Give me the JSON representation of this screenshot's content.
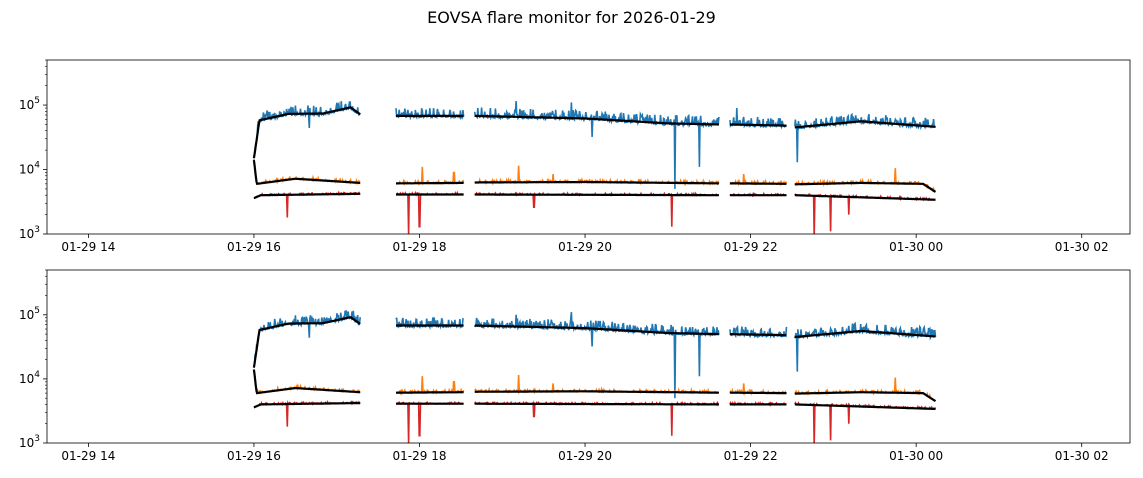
{
  "figure": {
    "title": "EOVSA flare monitor for 2026-01-29"
  },
  "chart_data": [
    {
      "type": "line",
      "yscale": "log",
      "ylim": [
        1000,
        500000
      ],
      "xlim": [
        "01-29 13:30",
        "01-30 02:35"
      ],
      "x_ticks": [
        "01-29 14",
        "01-29 16",
        "01-29 18",
        "01-29 20",
        "01-29 22",
        "01-30 00",
        "01-30 02"
      ],
      "y_ticks": [
        {
          "value": 1000,
          "base": "10",
          "exp": "3"
        },
        {
          "value": 10000,
          "base": "10",
          "exp": "4"
        },
        {
          "value": 100000,
          "base": "10",
          "exp": "5"
        }
      ],
      "segments": [
        [
          "01-29 16:00",
          "01-29 17:17"
        ],
        [
          "01-29 17:43",
          "01-29 18:32"
        ],
        [
          "01-29 18:40",
          "01-29 21:37"
        ],
        [
          "01-29 21:45",
          "01-29 22:26"
        ],
        [
          "01-29 22:32",
          "01-30 00:14"
        ]
      ],
      "series": [
        {
          "color": "#1f77b4",
          "baseline": [
            [
              "01-29 16:00",
              15000
            ],
            [
              "01-29 16:04",
              58000
            ],
            [
              "01-29 16:25",
              73000
            ],
            [
              "01-29 16:50",
              74000
            ],
            [
              "01-29 17:10",
              92000
            ],
            [
              "01-29 17:17",
              72000
            ],
            [
              "01-29 17:43",
              68000
            ],
            [
              "01-29 18:32",
              68000
            ],
            [
              "01-29 18:40",
              68000
            ],
            [
              "01-29 20:00",
              62000
            ],
            [
              "01-29 21:00",
              52000
            ],
            [
              "01-29 21:37",
              50000
            ],
            [
              "01-29 21:45",
              50000
            ],
            [
              "01-29 22:26",
              48000
            ],
            [
              "01-29 22:32",
              45000
            ],
            [
              "01-29 23:20",
              56000
            ],
            [
              "01-30 00:14",
              46000
            ]
          ],
          "noise": 0.25,
          "spikes_up": [
            [
              "01-29 19:10",
              115000
            ],
            [
              "01-29 19:50",
              110000
            ],
            [
              "01-29 21:50",
              90000
            ]
          ],
          "spikes_down": [
            [
              "01-29 16:40",
              44000
            ],
            [
              "01-29 20:05",
              32000
            ],
            [
              "01-29 21:05",
              5000
            ],
            [
              "01-29 21:23",
              11000
            ],
            [
              "01-29 22:34",
              13000
            ]
          ]
        },
        {
          "color": "#ff7f0e",
          "baseline": [
            [
              "01-29 16:00",
              14000
            ],
            [
              "01-29 16:02",
              6000
            ],
            [
              "01-29 16:30",
              7200
            ],
            [
              "01-29 17:17",
              6200
            ],
            [
              "01-29 17:43",
              6100
            ],
            [
              "01-29 18:32",
              6200
            ],
            [
              "01-29 18:40",
              6300
            ],
            [
              "01-29 20:00",
              6400
            ],
            [
              "01-29 21:37",
              6100
            ],
            [
              "01-29 21:45",
              6100
            ],
            [
              "01-29 22:26",
              6000
            ],
            [
              "01-29 22:32",
              5900
            ],
            [
              "01-29 23:20",
              6200
            ],
            [
              "01-30 00:05",
              6000
            ],
            [
              "01-30 00:14",
              4500
            ]
          ],
          "noise": 0.06,
          "spikes_up": [
            [
              "01-29 18:02",
              11000
            ],
            [
              "01-29 18:25",
              9000
            ],
            [
              "01-29 19:12",
              11500
            ],
            [
              "01-29 19:37",
              8500
            ],
            [
              "01-29 21:55",
              8500
            ],
            [
              "01-29 23:45",
              10500
            ]
          ],
          "spikes_down": []
        },
        {
          "color": "#d62728",
          "baseline": [
            [
              "01-29 16:00",
              3600
            ],
            [
              "01-29 16:05",
              4000
            ],
            [
              "01-29 17:17",
              4200
            ],
            [
              "01-29 17:43",
              4100
            ],
            [
              "01-29 18:32",
              4100
            ],
            [
              "01-29 18:40",
              4100
            ],
            [
              "01-29 21:37",
              4000
            ],
            [
              "01-29 21:45",
              4000
            ],
            [
              "01-29 22:26",
              4000
            ],
            [
              "01-29 22:32",
              4000
            ],
            [
              "01-30 00:14",
              3400
            ]
          ],
          "noise": 0.04,
          "spikes_up": [],
          "spikes_down": [
            [
              "01-29 16:24",
              1800
            ],
            [
              "01-29 17:52",
              1000
            ],
            [
              "01-29 18:00",
              1300
            ],
            [
              "01-29 19:23",
              2600
            ],
            [
              "01-29 21:03",
              1300
            ],
            [
              "01-29 22:46",
              900
            ],
            [
              "01-29 22:58",
              1100
            ],
            [
              "01-29 23:11",
              2000
            ]
          ]
        }
      ],
      "smooth_color": "#000000",
      "grid": false
    },
    {
      "type": "line",
      "yscale": "log",
      "ylim": [
        1000,
        500000
      ],
      "xlim": [
        "01-29 13:30",
        "01-30 02:35"
      ],
      "x_ticks": [
        "01-29 14",
        "01-29 16",
        "01-29 18",
        "01-29 20",
        "01-29 22",
        "01-30 00",
        "01-30 02"
      ],
      "y_ticks": [
        {
          "value": 1000,
          "base": "10",
          "exp": "3"
        },
        {
          "value": 10000,
          "base": "10",
          "exp": "4"
        },
        {
          "value": 100000,
          "base": "10",
          "exp": "5"
        }
      ],
      "segments": [
        [
          "01-29 16:00",
          "01-29 17:17"
        ],
        [
          "01-29 17:43",
          "01-29 18:32"
        ],
        [
          "01-29 18:40",
          "01-29 21:37"
        ],
        [
          "01-29 21:45",
          "01-29 22:26"
        ],
        [
          "01-29 22:32",
          "01-30 00:14"
        ]
      ],
      "series": [
        {
          "color": "#1f77b4",
          "baseline": [
            [
              "01-29 16:00",
              15000
            ],
            [
              "01-29 16:04",
              58000
            ],
            [
              "01-29 16:25",
              73000
            ],
            [
              "01-29 16:50",
              74000
            ],
            [
              "01-29 17:10",
              92000
            ],
            [
              "01-29 17:17",
              72000
            ],
            [
              "01-29 17:43",
              68000
            ],
            [
              "01-29 18:32",
              68000
            ],
            [
              "01-29 18:40",
              68000
            ],
            [
              "01-29 20:00",
              62000
            ],
            [
              "01-29 21:00",
              52000
            ],
            [
              "01-29 21:37",
              50000
            ],
            [
              "01-29 21:45",
              50000
            ],
            [
              "01-29 22:26",
              48000
            ],
            [
              "01-29 22:32",
              45000
            ],
            [
              "01-29 23:20",
              56000
            ],
            [
              "01-30 00:14",
              46000
            ]
          ],
          "noise": 0.25,
          "spikes_up": [
            [
              "01-29 19:10",
              100000
            ],
            [
              "01-29 19:50",
              110000
            ],
            [
              "01-29 21:50",
              62000
            ]
          ],
          "spikes_down": [
            [
              "01-29 16:40",
              44000
            ],
            [
              "01-29 20:05",
              32000
            ],
            [
              "01-29 21:05",
              5000
            ],
            [
              "01-29 21:23",
              11000
            ],
            [
              "01-29 22:34",
              13000
            ]
          ]
        },
        {
          "color": "#ff7f0e",
          "baseline": [
            [
              "01-29 16:00",
              14000
            ],
            [
              "01-29 16:02",
              6000
            ],
            [
              "01-29 16:30",
              7200
            ],
            [
              "01-29 17:17",
              6200
            ],
            [
              "01-29 17:43",
              6100
            ],
            [
              "01-29 18:32",
              6200
            ],
            [
              "01-29 18:40",
              6300
            ],
            [
              "01-29 20:00",
              6400
            ],
            [
              "01-29 21:37",
              6100
            ],
            [
              "01-29 21:45",
              6100
            ],
            [
              "01-29 22:26",
              6000
            ],
            [
              "01-29 22:32",
              5900
            ],
            [
              "01-29 23:20",
              6200
            ],
            [
              "01-30 00:05",
              6000
            ],
            [
              "01-30 00:14",
              4500
            ]
          ],
          "noise": 0.06,
          "spikes_up": [
            [
              "01-29 18:02",
              11000
            ],
            [
              "01-29 18:25",
              9000
            ],
            [
              "01-29 19:12",
              11500
            ],
            [
              "01-29 19:37",
              8500
            ],
            [
              "01-29 21:55",
              8500
            ],
            [
              "01-29 23:45",
              10500
            ]
          ],
          "spikes_down": []
        },
        {
          "color": "#d62728",
          "baseline": [
            [
              "01-29 16:00",
              3600
            ],
            [
              "01-29 16:05",
              4000
            ],
            [
              "01-29 17:17",
              4200
            ],
            [
              "01-29 17:43",
              4100
            ],
            [
              "01-29 18:32",
              4100
            ],
            [
              "01-29 18:40",
              4100
            ],
            [
              "01-29 21:37",
              4000
            ],
            [
              "01-29 21:45",
              4000
            ],
            [
              "01-29 22:26",
              4000
            ],
            [
              "01-29 22:32",
              4000
            ],
            [
              "01-30 00:14",
              3400
            ]
          ],
          "noise": 0.04,
          "spikes_up": [],
          "spikes_down": [
            [
              "01-29 16:24",
              1800
            ],
            [
              "01-29 17:52",
              1000
            ],
            [
              "01-29 18:00",
              1300
            ],
            [
              "01-29 19:23",
              2600
            ],
            [
              "01-29 21:03",
              1300
            ],
            [
              "01-29 22:46",
              900
            ],
            [
              "01-29 22:58",
              1100
            ],
            [
              "01-29 23:11",
              2000
            ]
          ]
        }
      ],
      "smooth_color": "#000000",
      "grid": false
    }
  ]
}
